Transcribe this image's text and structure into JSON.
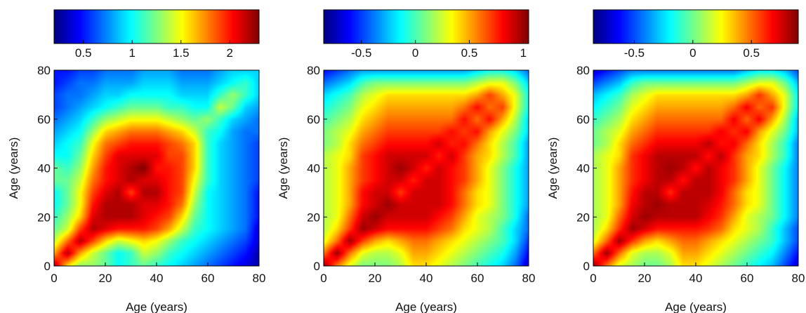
{
  "figure": {
    "title": ""
  },
  "colormap": {
    "name": "jet",
    "stops": [
      "#00007f",
      "#0000ff",
      "#007fff",
      "#00ffff",
      "#7fff7f",
      "#ffff00",
      "#ff7f00",
      "#ff0000",
      "#7f0000"
    ]
  },
  "chart_data": [
    {
      "type": "heatmap",
      "xlabel": "Age (years)",
      "ylabel": "Age (years)",
      "xlim": [
        0,
        80
      ],
      "ylim": [
        0,
        80
      ],
      "xticks": [
        0,
        20,
        40,
        60,
        80
      ],
      "yticks": [
        0,
        20,
        40,
        60,
        80
      ],
      "colorbar": {
        "position": "top",
        "range": [
          0.2,
          2.3
        ],
        "ticks": [
          0.5,
          1,
          1.5,
          2
        ],
        "tick_labels": [
          "0.5",
          "1",
          "1.5",
          "2"
        ]
      },
      "grid_step": 5,
      "z": [
        [
          2.2,
          1.6,
          1.3,
          1.3,
          1.2,
          1.0,
          1.1,
          1.2,
          1.1,
          1.0,
          0.9,
          0.8,
          0.7,
          0.6,
          0.5,
          0.4,
          0.3
        ],
        [
          1.7,
          2.2,
          1.7,
          1.4,
          1.2,
          1.0,
          1.1,
          1.4,
          1.3,
          1.1,
          1.0,
          0.9,
          0.8,
          0.7,
          0.6,
          0.5,
          0.3
        ],
        [
          1.4,
          1.8,
          2.2,
          1.9,
          1.6,
          1.4,
          1.5,
          1.6,
          1.5,
          1.3,
          1.1,
          1.0,
          0.9,
          0.8,
          0.7,
          0.6,
          0.4
        ],
        [
          1.2,
          1.4,
          1.9,
          2.2,
          2.1,
          2.0,
          2.0,
          2.0,
          1.9,
          1.7,
          1.4,
          1.1,
          1.0,
          0.9,
          0.8,
          0.7,
          0.4
        ],
        [
          1.1,
          1.3,
          1.6,
          2.1,
          2.2,
          2.2,
          2.2,
          2.1,
          2.0,
          1.9,
          1.6,
          1.2,
          1.0,
          0.9,
          0.8,
          0.7,
          0.5
        ],
        [
          1.0,
          1.2,
          1.5,
          2.0,
          2.2,
          2.2,
          2.2,
          2.1,
          2.1,
          2.0,
          1.8,
          1.3,
          1.0,
          0.9,
          0.8,
          0.7,
          0.5
        ],
        [
          1.0,
          1.2,
          1.5,
          1.9,
          2.1,
          2.2,
          1.9,
          2.2,
          2.2,
          2.0,
          1.9,
          1.4,
          1.0,
          0.9,
          0.8,
          0.7,
          0.5
        ],
        [
          1.2,
          1.2,
          1.4,
          1.8,
          2.0,
          2.1,
          2.2,
          2.1,
          2.1,
          2.0,
          1.9,
          1.5,
          1.1,
          0.9,
          0.8,
          0.7,
          0.6
        ],
        [
          1.2,
          1.1,
          1.3,
          1.7,
          2.0,
          2.1,
          2.2,
          2.3,
          2.0,
          2.0,
          1.9,
          1.6,
          1.1,
          0.9,
          0.8,
          0.7,
          0.6
        ],
        [
          1.0,
          1.0,
          1.2,
          1.6,
          1.9,
          2.1,
          2.1,
          2.1,
          2.1,
          1.9,
          1.9,
          1.6,
          1.1,
          0.9,
          0.8,
          0.7,
          0.6
        ],
        [
          0.9,
          1.0,
          1.1,
          1.5,
          1.8,
          1.9,
          2.0,
          2.0,
          2.0,
          1.9,
          1.8,
          1.6,
          1.1,
          0.9,
          0.8,
          0.7,
          0.6
        ],
        [
          0.8,
          0.9,
          1.0,
          1.3,
          1.6,
          1.7,
          1.8,
          1.8,
          1.8,
          1.7,
          1.6,
          1.4,
          1.1,
          1.0,
          0.8,
          0.7,
          0.7
        ],
        [
          0.7,
          0.8,
          0.9,
          1.1,
          1.3,
          1.4,
          1.5,
          1.5,
          1.5,
          1.4,
          1.3,
          1.2,
          1.3,
          1.1,
          0.9,
          0.8,
          0.7
        ],
        [
          0.6,
          0.7,
          0.8,
          0.9,
          1.0,
          1.1,
          1.2,
          1.2,
          1.2,
          1.1,
          1.1,
          1.0,
          1.0,
          1.4,
          1.2,
          0.9,
          0.8
        ],
        [
          0.6,
          0.7,
          0.7,
          0.8,
          0.9,
          0.9,
          1.0,
          1.0,
          1.0,
          1.0,
          0.9,
          0.9,
          0.9,
          1.1,
          1.3,
          1.1,
          0.9
        ],
        [
          0.5,
          0.6,
          0.7,
          0.7,
          0.8,
          0.8,
          0.8,
          0.9,
          0.9,
          0.9,
          0.8,
          0.8,
          0.8,
          0.9,
          1.0,
          1.1,
          0.9
        ],
        [
          0.5,
          0.5,
          0.6,
          0.6,
          0.7,
          0.7,
          0.7,
          0.8,
          0.8,
          0.8,
          0.7,
          0.7,
          0.7,
          0.8,
          0.9,
          0.9,
          0.9
        ]
      ]
    },
    {
      "type": "heatmap",
      "xlabel": "Age (years)",
      "ylabel": "Age (years)",
      "xlim": [
        0,
        80
      ],
      "ylim": [
        0,
        80
      ],
      "xticks": [
        0,
        20,
        40,
        60,
        80
      ],
      "yticks": [
        0,
        20,
        40,
        60,
        80
      ],
      "colorbar": {
        "position": "top",
        "range": [
          -0.85,
          1.05
        ],
        "ticks": [
          -0.5,
          0,
          0.5,
          1
        ],
        "tick_labels": [
          "-0.5",
          "0",
          "0.5",
          "1"
        ]
      },
      "grid_step": 5,
      "z": [
        [
          1.0,
          0.6,
          0.3,
          0.1,
          0.1,
          0.1,
          0.2,
          0.4,
          0.4,
          0.3,
          0.2,
          0.1,
          0.0,
          -0.1,
          -0.2,
          -0.4,
          -0.7
        ],
        [
          0.6,
          1.0,
          0.6,
          0.3,
          0.2,
          0.2,
          0.3,
          0.5,
          0.5,
          0.4,
          0.3,
          0.2,
          0.1,
          0.0,
          -0.1,
          -0.3,
          -0.6
        ],
        [
          0.3,
          0.6,
          1.0,
          0.7,
          0.5,
          0.4,
          0.5,
          0.6,
          0.6,
          0.5,
          0.4,
          0.3,
          0.2,
          0.1,
          0.0,
          -0.2,
          -0.5
        ],
        [
          0.2,
          0.4,
          0.7,
          1.0,
          0.9,
          0.8,
          0.8,
          0.8,
          0.8,
          0.7,
          0.6,
          0.4,
          0.3,
          0.2,
          0.0,
          -0.2,
          -0.4
        ],
        [
          0.2,
          0.3,
          0.6,
          0.9,
          1.0,
          0.9,
          0.9,
          0.9,
          0.9,
          0.8,
          0.7,
          0.5,
          0.3,
          0.2,
          0.1,
          -0.1,
          -0.4
        ],
        [
          0.2,
          0.3,
          0.5,
          0.8,
          0.9,
          1.0,
          0.9,
          0.9,
          0.9,
          0.9,
          0.8,
          0.6,
          0.4,
          0.3,
          0.1,
          -0.1,
          -0.3
        ],
        [
          0.2,
          0.3,
          0.5,
          0.8,
          0.9,
          0.9,
          0.7,
          0.9,
          0.9,
          0.9,
          0.8,
          0.6,
          0.4,
          0.3,
          0.1,
          -0.1,
          -0.3
        ],
        [
          0.2,
          0.3,
          0.5,
          0.7,
          0.8,
          0.9,
          0.9,
          0.75,
          0.9,
          0.9,
          0.8,
          0.7,
          0.5,
          0.3,
          0.1,
          -0.1,
          -0.3
        ],
        [
          0.2,
          0.3,
          0.5,
          0.7,
          0.8,
          0.9,
          1.0,
          0.9,
          0.75,
          0.9,
          0.8,
          0.7,
          0.5,
          0.3,
          0.1,
          -0.1,
          -0.3
        ],
        [
          0.2,
          0.3,
          0.4,
          0.7,
          0.8,
          0.9,
          0.9,
          0.9,
          0.9,
          0.75,
          0.9,
          0.7,
          0.5,
          0.4,
          0.2,
          0.0,
          -0.3
        ],
        [
          0.1,
          0.2,
          0.4,
          0.6,
          0.7,
          0.8,
          0.8,
          0.8,
          0.8,
          0.9,
          0.75,
          0.8,
          0.6,
          0.4,
          0.2,
          0.0,
          -0.3
        ],
        [
          0.1,
          0.2,
          0.3,
          0.5,
          0.6,
          0.7,
          0.7,
          0.7,
          0.7,
          0.7,
          0.8,
          0.7,
          0.8,
          0.5,
          0.3,
          0.1,
          -0.2
        ],
        [
          0.0,
          0.1,
          0.2,
          0.4,
          0.5,
          0.6,
          0.6,
          0.6,
          0.6,
          0.6,
          0.6,
          0.8,
          0.6,
          0.8,
          0.5,
          0.2,
          -0.2
        ],
        [
          -0.1,
          0.0,
          0.1,
          0.3,
          0.4,
          0.5,
          0.5,
          0.5,
          0.5,
          0.5,
          0.5,
          0.6,
          0.8,
          0.6,
          0.7,
          0.3,
          -0.1
        ],
        [
          -0.2,
          -0.1,
          0.0,
          0.2,
          0.3,
          0.4,
          0.4,
          0.4,
          0.4,
          0.4,
          0.4,
          0.4,
          0.5,
          0.7,
          0.5,
          0.3,
          -0.1
        ],
        [
          -0.4,
          -0.3,
          -0.2,
          0.0,
          0.1,
          0.1,
          0.1,
          0.1,
          0.1,
          0.1,
          0.1,
          0.1,
          0.2,
          0.3,
          0.3,
          0.1,
          -0.2
        ],
        [
          -0.6,
          -0.5,
          -0.4,
          -0.3,
          -0.3,
          -0.3,
          -0.3,
          -0.3,
          -0.3,
          -0.3,
          -0.3,
          -0.3,
          -0.2,
          -0.1,
          -0.1,
          -0.2,
          -0.4
        ]
      ]
    },
    {
      "type": "heatmap",
      "xlabel": "Age (years)",
      "ylabel": "Age (years)",
      "xlim": [
        0,
        80
      ],
      "ylim": [
        0,
        80
      ],
      "xticks": [
        0,
        20,
        40,
        60,
        80
      ],
      "yticks": [
        0,
        20,
        40,
        60,
        80
      ],
      "colorbar": {
        "position": "top",
        "range": [
          -0.85,
          0.9
        ],
        "ticks": [
          -0.5,
          0,
          0.5
        ],
        "tick_labels": [
          "-0.5",
          "0",
          "0.5"
        ]
      },
      "grid_step": 5,
      "z": [
        [
          0.85,
          0.5,
          0.2,
          0.1,
          0.0,
          0.0,
          0.1,
          0.3,
          0.3,
          0.2,
          0.1,
          0.0,
          -0.1,
          -0.2,
          -0.3,
          -0.5,
          -0.7
        ],
        [
          0.5,
          0.85,
          0.5,
          0.2,
          0.1,
          0.1,
          0.2,
          0.4,
          0.4,
          0.3,
          0.2,
          0.1,
          0.0,
          -0.1,
          -0.2,
          -0.4,
          -0.6
        ],
        [
          0.2,
          0.5,
          0.85,
          0.6,
          0.4,
          0.3,
          0.4,
          0.5,
          0.5,
          0.4,
          0.3,
          0.2,
          0.1,
          0.0,
          -0.1,
          -0.3,
          -0.5
        ],
        [
          0.1,
          0.3,
          0.6,
          0.85,
          0.75,
          0.65,
          0.65,
          0.65,
          0.65,
          0.6,
          0.5,
          0.3,
          0.2,
          0.1,
          -0.1,
          -0.3,
          -0.5
        ],
        [
          0.1,
          0.2,
          0.5,
          0.75,
          0.85,
          0.8,
          0.8,
          0.8,
          0.8,
          0.7,
          0.6,
          0.4,
          0.2,
          0.1,
          0.0,
          -0.2,
          -0.4
        ],
        [
          0.1,
          0.2,
          0.4,
          0.7,
          0.8,
          0.85,
          0.8,
          0.8,
          0.8,
          0.75,
          0.65,
          0.5,
          0.3,
          0.2,
          0.0,
          -0.2,
          -0.4
        ],
        [
          0.1,
          0.2,
          0.4,
          0.65,
          0.8,
          0.8,
          0.6,
          0.8,
          0.8,
          0.8,
          0.7,
          0.5,
          0.3,
          0.2,
          0.0,
          -0.2,
          -0.4
        ],
        [
          0.1,
          0.2,
          0.4,
          0.6,
          0.7,
          0.8,
          0.8,
          0.65,
          0.8,
          0.8,
          0.7,
          0.6,
          0.4,
          0.2,
          0.0,
          -0.2,
          -0.4
        ],
        [
          0.1,
          0.2,
          0.4,
          0.6,
          0.7,
          0.8,
          0.85,
          0.8,
          0.65,
          0.8,
          0.7,
          0.6,
          0.4,
          0.2,
          0.0,
          -0.2,
          -0.4
        ],
        [
          0.1,
          0.2,
          0.3,
          0.6,
          0.7,
          0.8,
          0.8,
          0.8,
          0.8,
          0.65,
          0.8,
          0.6,
          0.4,
          0.3,
          0.1,
          -0.1,
          -0.4
        ],
        [
          0.0,
          0.1,
          0.3,
          0.5,
          0.6,
          0.7,
          0.7,
          0.7,
          0.7,
          0.8,
          0.65,
          0.7,
          0.5,
          0.3,
          0.1,
          -0.1,
          -0.4
        ],
        [
          0.0,
          0.1,
          0.2,
          0.4,
          0.5,
          0.6,
          0.6,
          0.6,
          0.6,
          0.6,
          0.7,
          0.6,
          0.7,
          0.4,
          0.2,
          0.0,
          -0.3
        ],
        [
          -0.1,
          0.0,
          0.1,
          0.3,
          0.4,
          0.5,
          0.5,
          0.5,
          0.5,
          0.5,
          0.5,
          0.7,
          0.5,
          0.7,
          0.4,
          0.1,
          -0.3
        ],
        [
          -0.2,
          -0.1,
          0.0,
          0.2,
          0.3,
          0.4,
          0.4,
          0.4,
          0.4,
          0.4,
          0.4,
          0.5,
          0.7,
          0.5,
          0.6,
          0.2,
          -0.2
        ],
        [
          -0.3,
          -0.2,
          -0.1,
          0.1,
          0.2,
          0.3,
          0.3,
          0.3,
          0.3,
          0.3,
          0.3,
          0.3,
          0.4,
          0.6,
          0.4,
          0.2,
          -0.2
        ],
        [
          -0.5,
          -0.4,
          -0.3,
          -0.1,
          0.0,
          0.0,
          0.0,
          0.0,
          0.0,
          0.0,
          0.0,
          0.0,
          0.1,
          0.2,
          0.2,
          0.0,
          -0.3
        ],
        [
          -0.7,
          -0.6,
          -0.5,
          -0.4,
          -0.4,
          -0.4,
          -0.4,
          -0.4,
          -0.4,
          -0.4,
          -0.4,
          -0.4,
          -0.3,
          -0.2,
          -0.2,
          -0.3,
          -0.5
        ]
      ]
    }
  ]
}
